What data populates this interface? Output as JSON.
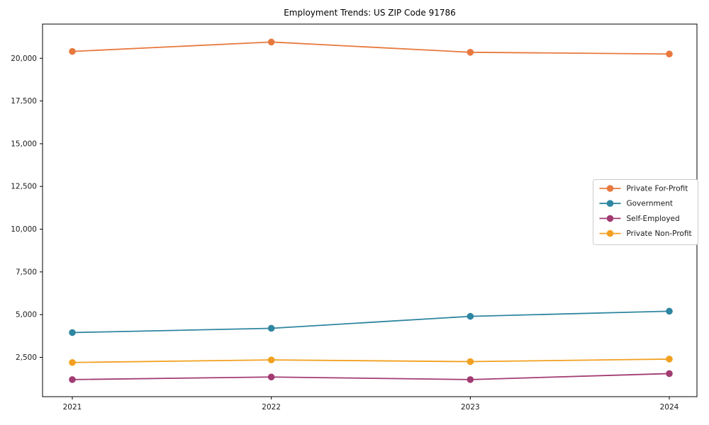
{
  "chart_data": {
    "type": "line",
    "title": "Employment Trends: US ZIP Code 91786",
    "categories": [
      "2021",
      "2022",
      "2023",
      "2024"
    ],
    "series": [
      {
        "name": "Private For-Profit",
        "color": "#E8793E",
        "values": [
          20400,
          20950,
          20350,
          20250
        ]
      },
      {
        "name": "Government",
        "color": "#2E86A1",
        "values": [
          3950,
          4200,
          4900,
          5200
        ]
      },
      {
        "name": "Self-Employed",
        "color": "#A23B72",
        "values": [
          1200,
          1350,
          1200,
          1550
        ]
      },
      {
        "name": "Private Non-Profit",
        "color": "#F2A01F",
        "values": [
          2200,
          2350,
          2250,
          2400
        ]
      }
    ],
    "xlabel": "",
    "ylabel": "",
    "ylim": [
      200,
      22000
    ],
    "yticks": [
      2500,
      5000,
      7500,
      10000,
      12500,
      15000,
      17500,
      20000
    ],
    "grid": false,
    "legend_position": "center-right",
    "marker": "circle",
    "axis_color": "#000000",
    "tick_label_color": "#1a1a1a",
    "legend_border_color": "#cccccc",
    "background_color": "#ffffff"
  }
}
